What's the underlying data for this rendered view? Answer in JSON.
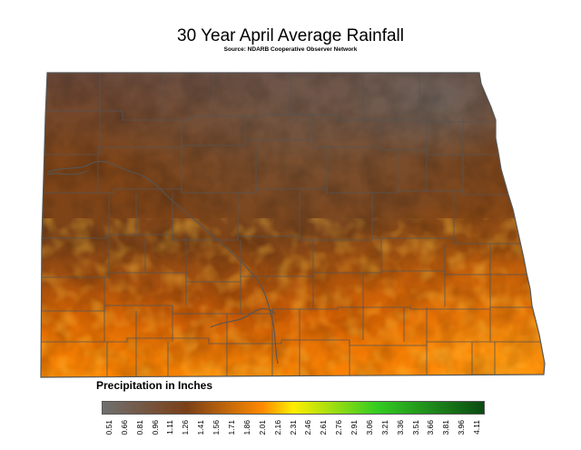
{
  "title": "30 Year April Average Rainfall",
  "subtitle": "Source: NDARB Cooperative Observer Network",
  "legend": {
    "title": "Precipitation in Inches",
    "ticks": [
      "0.51",
      "0.66",
      "0.81",
      "0.96",
      "1.11",
      "1.26",
      "1.41",
      "1.56",
      "1.71",
      "1.86",
      "2.01",
      "2.16",
      "2.31",
      "2.46",
      "2.61",
      "2.76",
      "2.91",
      "3.06",
      "3.21",
      "3.36",
      "3.51",
      "3.66",
      "3.81",
      "3.96",
      "4.11"
    ],
    "colors": {
      "low": "#6f6f6f",
      "mid_low": "#7a3f17",
      "mid": "#ff8a00",
      "yellow": "#ffee00",
      "green": "#33cc22",
      "high": "#0a4a12"
    }
  },
  "map": {
    "region": "North Dakota",
    "colors": {
      "dry": "#6b4a3c",
      "brown": "#7e4418",
      "orange": "#c85a06",
      "bright": "#ff8c05",
      "border": "#555555"
    }
  }
}
